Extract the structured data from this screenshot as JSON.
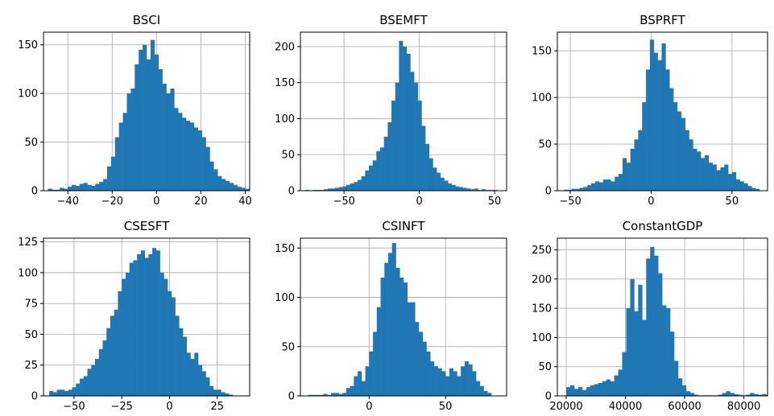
{
  "bar_color": "#1f77b4",
  "grid_color": "#b0b0b0",
  "chart_data": [
    {
      "type": "bar",
      "title": "BSCI",
      "grid": true,
      "xlim": [
        -51,
        42
      ],
      "ylim": [
        0,
        163
      ],
      "xticks": [
        -40,
        -20,
        0,
        20,
        40
      ],
      "yticks": [
        0,
        50,
        100,
        150
      ],
      "bins": {
        "start": -49,
        "width": 1.78,
        "counts": [
          2,
          1,
          1,
          3,
          2,
          4,
          6,
          5,
          7,
          8,
          6,
          5,
          7,
          9,
          12,
          25,
          35,
          55,
          70,
          80,
          100,
          105,
          130,
          145,
          150,
          135,
          155,
          140,
          125,
          110,
          100,
          105,
          85,
          80,
          75,
          72,
          70,
          65,
          62,
          55,
          45,
          30,
          22,
          15,
          12,
          10,
          8,
          6,
          4,
          3,
          2,
          2
        ]
      }
    },
    {
      "type": "bar",
      "title": "BSEMFT",
      "grid": true,
      "xlim": [
        -79,
        58
      ],
      "ylim": [
        0,
        220
      ],
      "xticks": [
        -50,
        0,
        50
      ],
      "yticks": [
        0,
        50,
        100,
        150,
        200
      ],
      "bins": {
        "start": -76,
        "width": 2.5,
        "counts": [
          1,
          0,
          1,
          1,
          1,
          2,
          3,
          3,
          4,
          5,
          6,
          8,
          10,
          12,
          15,
          20,
          28,
          35,
          42,
          55,
          60,
          75,
          95,
          125,
          150,
          208,
          200,
          190,
          165,
          150,
          125,
          90,
          65,
          45,
          32,
          25,
          18,
          14,
          10,
          8,
          6,
          5,
          4,
          3,
          2,
          3,
          1,
          2,
          1,
          1,
          1
        ]
      }
    },
    {
      "type": "bar",
      "title": "BSPRFT",
      "grid": true,
      "xlim": [
        -58,
        72
      ],
      "ylim": [
        0,
        170
      ],
      "xticks": [
        -50,
        0,
        50
      ],
      "yticks": [
        0,
        50,
        100,
        150
      ],
      "bins": {
        "start": -54,
        "width": 2.42,
        "counts": [
          1,
          1,
          2,
          2,
          3,
          4,
          6,
          8,
          10,
          9,
          12,
          12,
          10,
          15,
          18,
          35,
          30,
          45,
          55,
          65,
          95,
          130,
          162,
          148,
          140,
          158,
          130,
          110,
          95,
          85,
          78,
          65,
          55,
          45,
          42,
          35,
          38,
          30,
          28,
          22,
          25,
          28,
          18,
          20,
          12,
          10,
          8,
          5,
          3,
          2
        ]
      }
    },
    {
      "type": "bar",
      "title": "CSESFT",
      "grid": true,
      "xlim": [
        -66,
        42
      ],
      "ylim": [
        0,
        128
      ],
      "xticks": [
        -50,
        -25,
        0,
        25
      ],
      "yticks": [
        0,
        25,
        50,
        75,
        100,
        125
      ],
      "bins": {
        "start": -63,
        "width": 2.0,
        "counts": [
          4,
          3,
          5,
          5,
          4,
          5,
          7,
          10,
          14,
          16,
          22,
          25,
          30,
          38,
          45,
          55,
          65,
          70,
          85,
          95,
          100,
          108,
          110,
          115,
          118,
          112,
          115,
          120,
          118,
          100,
          95,
          85,
          80,
          65,
          55,
          48,
          35,
          30,
          35,
          25,
          20,
          15,
          8,
          5,
          5,
          3,
          2,
          1
        ]
      }
    },
    {
      "type": "bar",
      "title": "CSINFT",
      "grid": true,
      "xlim": [
        -45,
        90
      ],
      "ylim": [
        0,
        160
      ],
      "xticks": [
        0,
        50
      ],
      "yticks": [
        0,
        50,
        100,
        150
      ],
      "bins": {
        "start": -40,
        "width": 2.5,
        "counts": [
          1,
          1,
          1,
          1,
          2,
          1,
          3,
          3,
          2,
          3,
          8,
          10,
          20,
          25,
          15,
          30,
          45,
          65,
          90,
          120,
          135,
          145,
          155,
          130,
          120,
          115,
          95,
          95,
          75,
          65,
          55,
          45,
          35,
          30,
          28,
          25,
          20,
          28,
          25,
          20,
          30,
          35,
          32,
          25,
          15,
          10,
          5,
          3
        ]
      }
    },
    {
      "type": "bar",
      "title": "ConstantGDP",
      "grid": true,
      "xlim": [
        17000,
        88000
      ],
      "ylim": [
        0,
        270
      ],
      "xticks": [
        20000,
        40000,
        60000,
        80000
      ],
      "xticklabels": [
        "20000",
        "40000",
        "60000",
        "80000"
      ],
      "yticks": [
        0,
        50,
        100,
        150,
        200,
        250
      ],
      "bins": {
        "start": 20000,
        "width": 1350,
        "counts": [
          15,
          18,
          12,
          15,
          10,
          15,
          18,
          20,
          22,
          25,
          28,
          25,
          35,
          45,
          75,
          150,
          200,
          145,
          190,
          130,
          235,
          255,
          240,
          210,
          155,
          150,
          110,
          60,
          30,
          18,
          8,
          5,
          2,
          1,
          1,
          1,
          1,
          1,
          2,
          5,
          8,
          5,
          3,
          2,
          1,
          2,
          5,
          3,
          2,
          3,
          2
        ]
      }
    }
  ]
}
